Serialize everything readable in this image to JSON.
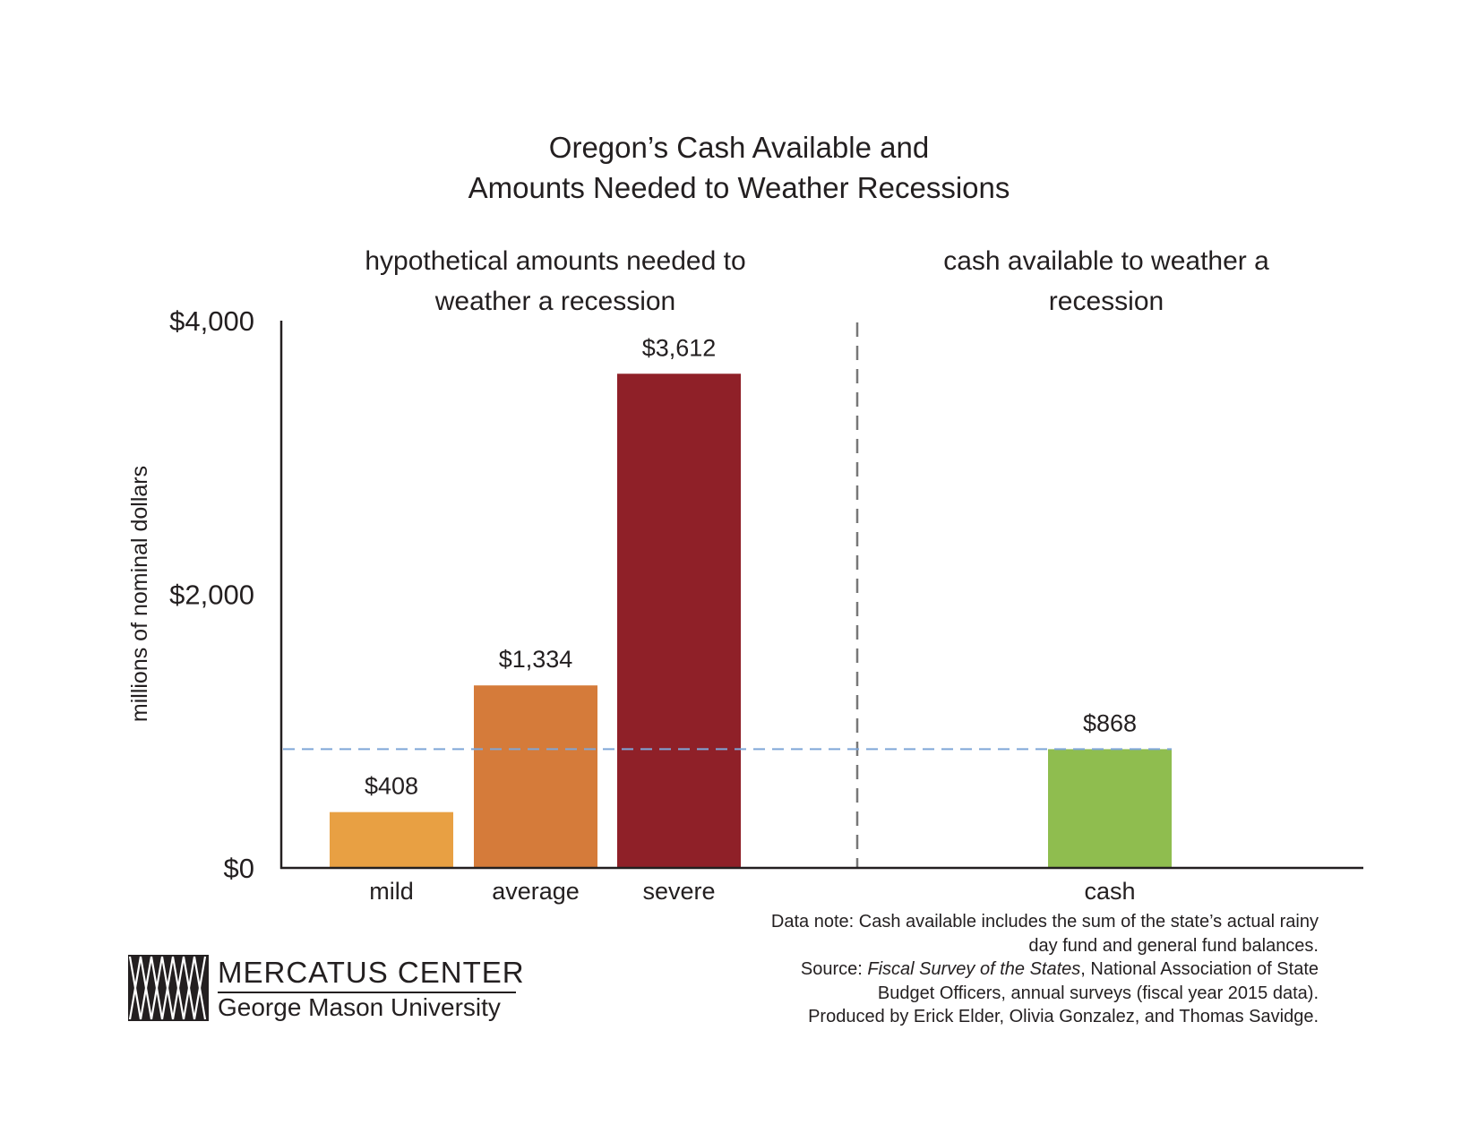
{
  "chart_data": {
    "type": "bar",
    "title_lines": [
      "Oregon’s Cash Available and",
      "Amounts Needed to Weather Recessions"
    ],
    "group_labels": {
      "needed": [
        "hypothetical amounts needed to",
        "weather a recession"
      ],
      "cash": [
        "cash available to weather a",
        "recession"
      ]
    },
    "ylabel": "millions of nominal dollars",
    "ylim": [
      0,
      4000
    ],
    "yticks": [
      "$0",
      "$2,000",
      "$4,000"
    ],
    "ytick_values": [
      0,
      2000,
      4000
    ],
    "categories": [
      "mild",
      "average",
      "severe",
      "cash"
    ],
    "values": [
      408,
      1334,
      3612,
      868
    ],
    "value_labels": [
      "$408",
      "$1,334",
      "$3,612",
      "$868"
    ],
    "colors": [
      "#e8a043",
      "#d57b3a",
      "#8f2028",
      "#8fbd4f"
    ],
    "reference_line": {
      "value": 868,
      "color": "#7fa6d8",
      "style": "dashed"
    },
    "divider": {
      "color": "#777777",
      "style": "dashed"
    },
    "grid": false
  },
  "note": {
    "line1": "Data note: Cash available includes the sum of the state’s actual rainy",
    "line2": "day fund and general fund balances.",
    "line3_prefix": "Source: ",
    "line3_italic": "Fiscal Survey of the States",
    "line3_suffix": ", National Association of State",
    "line4": "Budget Officers, annual surveys (fiscal year 2015 data).",
    "line5": "Produced by Erick Elder, Olivia Gonzalez, and Thomas Savidge."
  },
  "logo": {
    "name": "MERCATUS CENTER",
    "sub": "George Mason University"
  }
}
